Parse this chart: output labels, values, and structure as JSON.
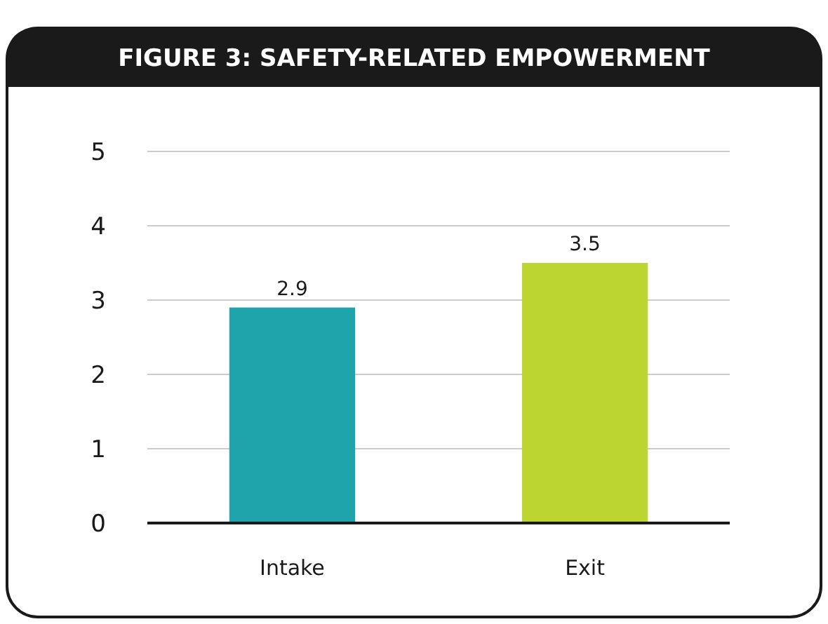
{
  "chart_data": {
    "type": "bar",
    "title": "FIGURE 3:  SAFETY-RELATED EMPOWERMENT",
    "categories": [
      "Intake",
      "Exit"
    ],
    "values": [
      2.9,
      3.5
    ],
    "colors": [
      "#20a4ab",
      "#bdd531"
    ],
    "ylim": [
      0,
      5
    ],
    "yticks": [
      0,
      1,
      2,
      3,
      4,
      5
    ],
    "grid": "y",
    "data_labels": true
  }
}
